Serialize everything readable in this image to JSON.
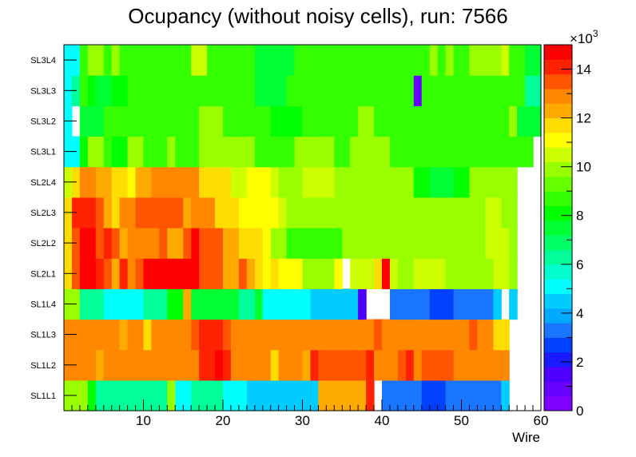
{
  "chart_data": {
    "type": "heatmap",
    "title": "Ocupancy (without noisy cells), run: 7566",
    "xlabel": "Wire",
    "ylabel": "",
    "xlim": [
      0,
      60
    ],
    "x_ticks": [
      "10",
      "20",
      "30",
      "40",
      "50",
      "60"
    ],
    "y_categories": [
      "SL1L1",
      "SL1L2",
      "SL1L3",
      "SL1L4",
      "SL2L1",
      "SL2L2",
      "SL2L3",
      "SL2L4",
      "SL3L1",
      "SL3L2",
      "SL3L3",
      "SL3L4"
    ],
    "zlim": [
      0,
      15000
    ],
    "z_exponent_label": "×10",
    "z_exponent_power": "3",
    "z_ticks": [
      "0",
      "2",
      "4",
      "6",
      "8",
      "10",
      "12",
      "14"
    ],
    "palette": [
      "#7f00ff",
      "#6600ff",
      "#4d00ff",
      "#1a1aff",
      "#0040ff",
      "#1a75ff",
      "#00aaff",
      "#00ccff",
      "#00ffff",
      "#00ffcc",
      "#00ff99",
      "#00ff66",
      "#00ff33",
      "#00ff00",
      "#33ff00",
      "#66ff00",
      "#99ff00",
      "#ccff00",
      "#ffff00",
      "#ffdd00",
      "#ffaa00",
      "#ff8800",
      "#ff5500",
      "#ff2200",
      "#ff0000"
    ],
    "rows": [
      {
        "layer": "SL1L1",
        "values": [
          9.6,
          9.6,
          9.6,
          8.0,
          6.4,
          6.4,
          6.4,
          6.4,
          6.0,
          6.0,
          6.0,
          6.0,
          6.0,
          9.6,
          5.2,
          5.2,
          6.4,
          6.4,
          6.4,
          6.4,
          5.2,
          5.2,
          5.2,
          4.4,
          4.4,
          4.4,
          4.4,
          4.4,
          4.4,
          4.4,
          4.4,
          4.4,
          12.4,
          12.4,
          12.4,
          12.4,
          12.4,
          12.4,
          14.0,
          0,
          3.2,
          3.2,
          3.2,
          3.2,
          3.2,
          2.4,
          2.4,
          2.4,
          3.2,
          3.2,
          3.2,
          3.2,
          3.2,
          3.2,
          3.2,
          4.4,
          0,
          0,
          0,
          0
        ]
      },
      {
        "layer": "SL1L2",
        "values": [
          12.8,
          12.8,
          12.8,
          12.8,
          12.0,
          12.8,
          12.8,
          12.8,
          12.8,
          12.8,
          12.8,
          12.8,
          12.8,
          12.8,
          12.8,
          12.8,
          12.8,
          14.0,
          14.0,
          14.8,
          14.0,
          12.8,
          12.8,
          12.8,
          12.8,
          12.8,
          11.6,
          12.8,
          12.8,
          12.8,
          12.0,
          14.0,
          13.2,
          13.2,
          13.2,
          13.2,
          13.2,
          13.2,
          14.0,
          12.8,
          12.8,
          12.8,
          13.2,
          14.0,
          12.8,
          13.2,
          13.2,
          13.2,
          13.2,
          12.8,
          12.8,
          12.8,
          12.8,
          12.8,
          12.8,
          12.8,
          0,
          0,
          0,
          0
        ]
      },
      {
        "layer": "SL1L3",
        "values": [
          12.8,
          12.8,
          12.8,
          12.8,
          12.8,
          12.8,
          12.8,
          12.0,
          12.8,
          12.8,
          11.6,
          12.8,
          12.8,
          12.8,
          12.8,
          12.8,
          13.2,
          14.0,
          14.0,
          14.0,
          13.2,
          12.8,
          12.8,
          12.8,
          12.8,
          12.8,
          12.8,
          12.8,
          12.8,
          12.8,
          12.8,
          12.8,
          12.8,
          12.8,
          12.8,
          12.8,
          12.8,
          12.8,
          12.8,
          13.2,
          12.8,
          12.8,
          12.8,
          12.8,
          12.8,
          12.8,
          12.8,
          12.8,
          12.8,
          12.8,
          12.8,
          13.2,
          12.8,
          12.8,
          11.6,
          11.6,
          0,
          0,
          0,
          0
        ]
      },
      {
        "layer": "SL1L4",
        "values": [
          9.6,
          9.6,
          6.4,
          6.4,
          6.4,
          5.2,
          5.2,
          5.2,
          5.2,
          5.2,
          6.4,
          6.4,
          6.4,
          8.0,
          8.0,
          12.4,
          7.2,
          7.2,
          7.2,
          7.2,
          7.2,
          7.2,
          6.4,
          6.4,
          7.2,
          5.2,
          5.2,
          5.2,
          5.2,
          5.2,
          5.2,
          4.4,
          4.4,
          4.4,
          4.4,
          4.4,
          4.4,
          1.2,
          0,
          0,
          0,
          3.2,
          3.2,
          3.2,
          3.2,
          3.2,
          2.8,
          2.8,
          2.8,
          3.2,
          3.2,
          3.2,
          3.2,
          3.2,
          4.4,
          0,
          4.4,
          0,
          0,
          0
        ]
      },
      {
        "layer": "SL2L1",
        "values": [
          11.6,
          13.2,
          14.4,
          14.4,
          14.0,
          13.2,
          12.4,
          14.0,
          12.8,
          13.6,
          14.4,
          14.4,
          14.4,
          14.4,
          14.4,
          14.4,
          14.4,
          13.6,
          13.6,
          13.6,
          12.4,
          12.4,
          13.2,
          12.4,
          11.6,
          10.8,
          11.6,
          10.8,
          10.8,
          10.8,
          9.6,
          9.6,
          9.6,
          9.6,
          10.8,
          0,
          10.4,
          10.4,
          10.4,
          11.6,
          15.2,
          10.4,
          9.6,
          9.6,
          10.4,
          10.4,
          10.4,
          10.4,
          9.6,
          9.6,
          9.6,
          9.6,
          9.6,
          9.6,
          10.4,
          10.4,
          9.6,
          0,
          0,
          0
        ]
      },
      {
        "layer": "SL2L2",
        "values": [
          11.6,
          13.2,
          14.4,
          14.4,
          13.6,
          14.0,
          13.2,
          12.4,
          12.8,
          12.8,
          12.8,
          12.8,
          13.2,
          12.4,
          12.4,
          13.2,
          14.4,
          13.2,
          13.2,
          13.2,
          12.4,
          12.4,
          11.6,
          11.6,
          11.6,
          10.8,
          9.6,
          9.6,
          8.8,
          8.8,
          8.8,
          8.8,
          8.8,
          8.8,
          8.8,
          9.6,
          9.6,
          9.6,
          9.6,
          9.6,
          9.6,
          9.6,
          9.6,
          9.6,
          9.6,
          9.6,
          9.6,
          9.6,
          9.6,
          9.6,
          9.6,
          9.6,
          9.6,
          10.4,
          10.4,
          10.4,
          9.6,
          0,
          0,
          0
        ]
      },
      {
        "layer": "SL2L3",
        "values": [
          11.6,
          14.0,
          14.0,
          14.0,
          13.2,
          12.4,
          11.6,
          12.8,
          12.8,
          13.6,
          13.6,
          13.6,
          13.6,
          13.6,
          13.6,
          12.4,
          12.8,
          12.8,
          12.8,
          11.6,
          11.6,
          11.6,
          10.8,
          10.8,
          10.8,
          10.8,
          10.8,
          10.4,
          9.6,
          9.6,
          9.6,
          9.6,
          9.6,
          9.6,
          9.6,
          9.6,
          9.6,
          9.6,
          9.6,
          9.6,
          9.6,
          9.6,
          9.6,
          9.6,
          9.6,
          9.6,
          9.6,
          9.6,
          9.6,
          9.6,
          9.6,
          9.6,
          9.6,
          10.4,
          10.4,
          9.6,
          9.6,
          0,
          0,
          0
        ]
      },
      {
        "layer": "SL2L4",
        "values": [
          10.4,
          11.6,
          12.8,
          12.8,
          12.4,
          12.4,
          11.6,
          11.6,
          11.2,
          12.0,
          12.4,
          12.8,
          12.8,
          12.8,
          12.8,
          12.8,
          12.8,
          11.6,
          11.6,
          11.6,
          11.6,
          10.4,
          10.4,
          10.8,
          10.8,
          10.8,
          10.4,
          9.6,
          9.6,
          9.6,
          10.4,
          10.4,
          10.4,
          10.4,
          9.6,
          9.6,
          9.6,
          9.6,
          9.6,
          9.6,
          9.6,
          9.6,
          9.6,
          9.6,
          8.0,
          8.0,
          7.6,
          7.6,
          7.6,
          8.0,
          8.0,
          9.6,
          9.6,
          9.6,
          9.6,
          9.6,
          9.6,
          0,
          0,
          0
        ]
      },
      {
        "layer": "SL3L1",
        "values": [
          5.2,
          5.2,
          8.0,
          9.6,
          9.6,
          8.8,
          8.0,
          8.0,
          9.6,
          9.6,
          8.8,
          8.8,
          8.8,
          9.6,
          8.8,
          8.8,
          8.8,
          9.6,
          9.6,
          9.6,
          9.6,
          9.6,
          9.6,
          9.6,
          8.8,
          8.8,
          8.8,
          8.8,
          8.8,
          9.6,
          9.6,
          9.6,
          9.6,
          9.6,
          8.8,
          8.8,
          9.6,
          9.6,
          9.6,
          9.6,
          9.6,
          8.8,
          8.8,
          8.8,
          8.8,
          8.8,
          8.8,
          8.8,
          8.8,
          8.8,
          8.8,
          8.8,
          8.8,
          8.8,
          8.8,
          8.8,
          8.8,
          8.8,
          8.8,
          0
        ]
      },
      {
        "layer": "SL3L2",
        "values": [
          4.8,
          0,
          7.2,
          7.2,
          7.2,
          8.8,
          8.8,
          8.8,
          8.8,
          8.8,
          8.8,
          8.8,
          8.8,
          8.8,
          8.8,
          8.8,
          8.8,
          10.0,
          10.0,
          10.0,
          8.8,
          8.8,
          8.8,
          8.8,
          8.8,
          8.8,
          8.0,
          8.0,
          8.0,
          8.0,
          8.8,
          8.8,
          8.8,
          8.8,
          8.8,
          8.8,
          8.8,
          9.6,
          9.6,
          8.8,
          8.8,
          8.8,
          8.8,
          8.8,
          8.8,
          8.8,
          8.8,
          8.8,
          8.8,
          8.8,
          8.8,
          8.8,
          8.8,
          8.8,
          8.8,
          8.8,
          10.0,
          7.2,
          7.2,
          7.2
        ]
      },
      {
        "layer": "SL3L3",
        "values": [
          4.8,
          6.4,
          8.8,
          8.0,
          7.2,
          7.2,
          8.0,
          8.0,
          8.8,
          8.8,
          8.8,
          8.8,
          8.8,
          8.8,
          8.8,
          8.8,
          8.8,
          8.8,
          8.8,
          8.8,
          8.8,
          8.8,
          8.8,
          8.8,
          7.2,
          7.2,
          7.2,
          7.2,
          8.8,
          8.8,
          8.8,
          8.8,
          8.8,
          8.8,
          8.8,
          8.8,
          8.8,
          8.8,
          8.8,
          8.8,
          8.8,
          8.8,
          8.8,
          8.8,
          0.8,
          8.8,
          8.8,
          8.8,
          8.8,
          8.8,
          8.8,
          8.8,
          8.8,
          8.8,
          8.8,
          8.8,
          8.8,
          8.8,
          6.4,
          6.4
        ]
      },
      {
        "layer": "SL3L4",
        "values": [
          5.2,
          5.2,
          8.8,
          9.6,
          9.6,
          8.8,
          9.6,
          8.8,
          8.8,
          8.8,
          8.8,
          8.8,
          8.8,
          8.8,
          8.8,
          8.8,
          10.4,
          10.4,
          8.8,
          8.8,
          8.8,
          8.8,
          8.8,
          8.8,
          7.2,
          7.2,
          7.2,
          7.2,
          7.2,
          8.8,
          8.8,
          8.8,
          8.8,
          8.8,
          8.8,
          8.8,
          8.8,
          8.8,
          8.8,
          8.8,
          8.8,
          8.8,
          8.8,
          8.8,
          8.8,
          8.8,
          9.6,
          8.8,
          10.0,
          8.8,
          8.8,
          9.6,
          9.6,
          9.6,
          10.0,
          10.4,
          8.8,
          8.8,
          7.2,
          7.2
        ]
      }
    ]
  }
}
